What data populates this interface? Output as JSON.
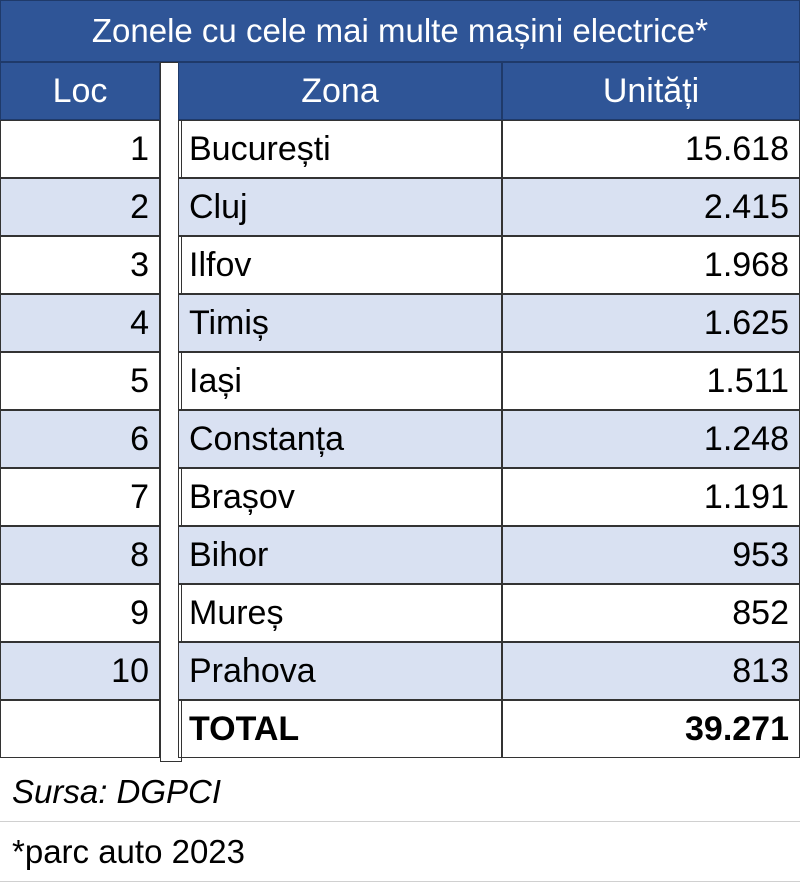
{
  "title": "Zonele cu cele mai multe mașini electrice*",
  "table": {
    "header": [
      "Loc",
      "Zona",
      "Unități"
    ],
    "rows": [
      [
        "1",
        "București",
        "15.618"
      ],
      [
        "2",
        "Cluj",
        "2.415"
      ],
      [
        "3",
        "Ilfov",
        "1.968"
      ],
      [
        "4",
        "Timiș",
        "1.625"
      ],
      [
        "5",
        "Iași",
        "1.511"
      ],
      [
        "6",
        "Constanța",
        "1.248"
      ],
      [
        "7",
        "Brașov",
        "1.191"
      ],
      [
        "8",
        "Bihor",
        "953"
      ],
      [
        "9",
        "Mureș",
        "852"
      ],
      [
        "10",
        "Prahova",
        "813"
      ]
    ],
    "total": {
      "label": "TOTAL",
      "value": "39.271"
    }
  },
  "source": "Sursa: DGPCI",
  "footnote": "*parc auto 2023"
}
